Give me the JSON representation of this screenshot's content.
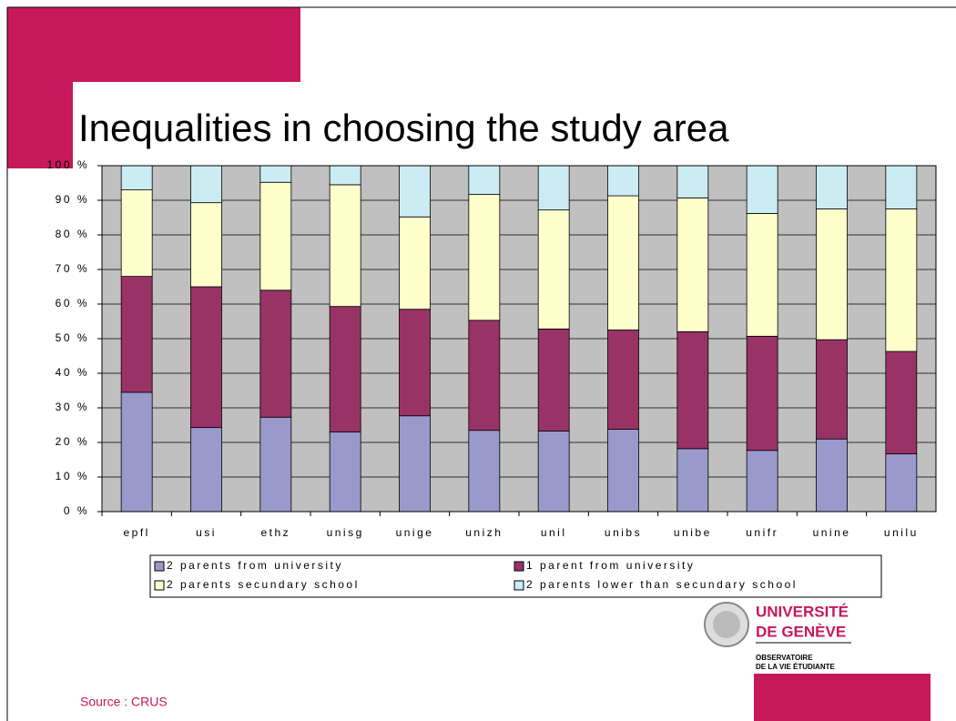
{
  "chart_data": {
    "type": "stacked_bar",
    "title": "Inequalities in choosing the study area",
    "categories": [
      "epfl",
      "usi",
      "ethz",
      "unisg",
      "unige",
      "unizh",
      "unil",
      "unibs",
      "unibe",
      "unifr",
      "unine",
      "unilu"
    ],
    "series": [
      {
        "name": "2 parents from university",
        "color": "#9999cc",
        "values": [
          34.5,
          24.3,
          27.3,
          23,
          27.7,
          23.5,
          23.3,
          23.8,
          18.2,
          17.7,
          21,
          16.7
        ]
      },
      {
        "name": "1 parent from university",
        "color": "#993366",
        "values": [
          33.5,
          40.7,
          36.7,
          36.3,
          30.8,
          31.8,
          29.5,
          28.7,
          33.8,
          33,
          28.7,
          29.6
        ]
      },
      {
        "name": "2 parents secundary school",
        "color": "#ffffcc",
        "values": [
          25,
          24.3,
          31.2,
          35.2,
          26.7,
          36.4,
          34.4,
          38.8,
          38.7,
          35.5,
          37.8,
          41.2
        ]
      },
      {
        "name": "2 parents lower than secundary school",
        "color": "#ccecf4",
        "values": [
          7,
          10.7,
          4.8,
          5.5,
          14.8,
          8.3,
          12.8,
          8.7,
          9.3,
          13.8,
          12.5,
          12.5
        ]
      }
    ],
    "ylim": [
      0,
      100
    ],
    "yticks": [
      {
        "value": 0,
        "label": "0 %"
      },
      {
        "value": 10,
        "label": "10 %"
      },
      {
        "value": 20,
        "label": "20 %"
      },
      {
        "value": 30,
        "label": "30 %"
      },
      {
        "value": 40,
        "label": "40 %"
      },
      {
        "value": 50,
        "label": "50 %"
      },
      {
        "value": 60,
        "label": "60 %"
      },
      {
        "value": 70,
        "label": "70 %"
      },
      {
        "value": 80,
        "label": "80 %"
      },
      {
        "value": 90,
        "label": "90 %"
      },
      {
        "value": 100,
        "label": "100 %"
      }
    ],
    "grid": true,
    "plot_background": "#c0c0c0"
  },
  "source": "Source : CRUS",
  "logo": {
    "line1": "UNIVERSITÉ",
    "line2": "DE GENÈVE",
    "line3": "OBSERVATOIRE",
    "line4": "DE LA VIE ÉTUDIANTE"
  }
}
